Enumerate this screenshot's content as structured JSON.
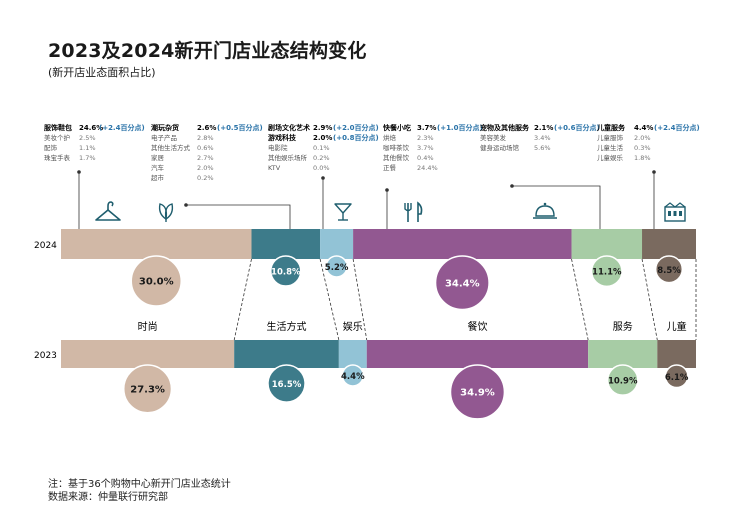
{
  "title": "2023及2024新开门店业态结构变化",
  "subtitle": "(新开店业态面积占比)",
  "notes": [
    "注：基于36个购物中心新开门店业态统计",
    "数据来源：仲量联行研究部"
  ],
  "colors": {
    "fashion": "#d1b8a6",
    "lifestyle": "#3d7b8a",
    "entertainment": "#92c3d6",
    "fnb": "#925891",
    "service": "#a7cca5",
    "children": "#7a6a5f",
    "change_text": "#2a73a8"
  },
  "chart_data": {
    "type": "bar",
    "layout": "stacked-100-horizontal",
    "categories": [
      "时尚",
      "生活方式",
      "娱乐",
      "餐饮",
      "服务",
      "儿童"
    ],
    "category_icons": [
      "hanger-icon",
      "leaf-icon",
      "cocktail-icon",
      "fork-knife-icon",
      "cloche-icon",
      "building-icon"
    ],
    "series": [
      {
        "name": "2024",
        "values": [
          30.0,
          10.8,
          5.2,
          34.4,
          11.1,
          8.5
        ]
      },
      {
        "name": "2023",
        "values": [
          27.3,
          16.5,
          4.4,
          34.9,
          10.9,
          6.1
        ]
      }
    ],
    "value_labels_2024": [
      "30.0%",
      "10.8%",
      "5.2%",
      "34.4%",
      "11.1%",
      "8.5%"
    ],
    "value_labels_2023": [
      "27.3%",
      "16.5%",
      "4.4%",
      "34.9%",
      "10.9%",
      "6.1%"
    ],
    "detail_groups": [
      {
        "header": "服饰鞋包",
        "value": "24.6%",
        "change": "(+2.4百分点)",
        "items": [
          [
            "美妆个护",
            "2.5%"
          ],
          [
            "配饰",
            "1.1%"
          ],
          [
            "珠宝手表",
            "1.7%"
          ]
        ]
      },
      {
        "header": "潮玩杂货",
        "value": "2.6%",
        "change": "(+0.5百分点)",
        "items": [
          [
            "电子产品",
            "2.8%"
          ],
          [
            "其他生活方式",
            "0.6%"
          ],
          [
            "家居",
            "2.7%"
          ],
          [
            "汽车",
            "2.0%"
          ],
          [
            "超市",
            "0.2%"
          ]
        ]
      },
      {
        "header": "剧场文化艺术",
        "value": "2.9%",
        "change": "(+2.0百分点)",
        "header2": "游戏科技",
        "value2": "2.0%",
        "change2": "(+0.8百分点)",
        "items": [
          [
            "电影院",
            "0.1%"
          ],
          [
            "其他娱乐场所",
            "0.2%"
          ],
          [
            "KTV",
            "0.0%"
          ]
        ]
      },
      {
        "header": "快餐小吃",
        "value": "3.7%",
        "change": "(+1.0百分点)",
        "items": [
          [
            "烘焙",
            "2.3%"
          ],
          [
            "咖啡茶饮",
            "3.7%"
          ],
          [
            "其他餐饮",
            "0.4%"
          ],
          [
            "正餐",
            "24.4%"
          ]
        ]
      },
      {
        "header": "宠物及其他服务",
        "value": "2.1%",
        "change": "(+0.6百分点)",
        "items": [
          [
            "美容美发",
            "3.4%"
          ],
          [
            "健身运动场馆",
            "5.6%"
          ]
        ]
      },
      {
        "header": "儿童服务",
        "value": "4.4%",
        "change": "(+2.4百分点)",
        "items": [
          [
            "儿童服饰",
            "2.0%"
          ],
          [
            "儿童生活",
            "0.3%"
          ],
          [
            "儿童娱乐",
            "1.8%"
          ]
        ]
      }
    ]
  }
}
